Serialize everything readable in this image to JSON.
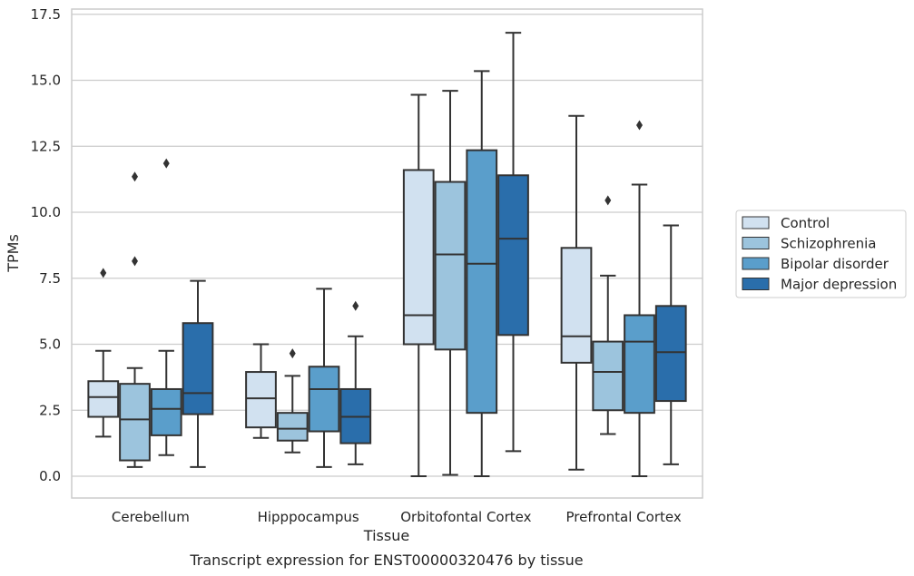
{
  "chart_data": {
    "type": "box",
    "title": "",
    "caption": "Transcript expression for ENST00000320476 by tissue",
    "xlabel": "Tissue",
    "ylabel": "TPMs",
    "ylim": [
      -0.8,
      17.6
    ],
    "yticks": [
      0.0,
      2.5,
      5.0,
      7.5,
      10.0,
      12.5,
      15.0,
      17.5
    ],
    "ytick_labels": [
      "0.0",
      "2.5",
      "5.0",
      "7.5",
      "10.0",
      "12.5",
      "15.0",
      "17.5"
    ],
    "grid": "horizontal",
    "legend_position": "right",
    "categories": [
      "Cerebellum",
      "Hipppocampus",
      "Orbitofontal Cortex",
      "Prefrontal Cortex"
    ],
    "series": [
      {
        "name": "Control",
        "color": "#d1e1f0",
        "boxes": [
          {
            "whislo": 1.5,
            "q1": 2.25,
            "med": 3.0,
            "q3": 3.6,
            "whishi": 4.75,
            "fliers": [
              7.7
            ]
          },
          {
            "whislo": 1.45,
            "q1": 1.85,
            "med": 2.95,
            "q3": 3.95,
            "whishi": 5.0,
            "fliers": []
          },
          {
            "whislo": 0.0,
            "q1": 5.0,
            "med": 6.1,
            "q3": 11.6,
            "whishi": 14.45,
            "fliers": []
          },
          {
            "whislo": 0.25,
            "q1": 4.3,
            "med": 5.3,
            "q3": 8.65,
            "whishi": 13.65,
            "fliers": []
          }
        ]
      },
      {
        "name": "Schizophrenia",
        "color": "#9cc4dd",
        "boxes": [
          {
            "whislo": 0.35,
            "q1": 0.6,
            "med": 2.15,
            "q3": 3.5,
            "whishi": 4.1,
            "fliers": [
              8.15,
              11.35
            ]
          },
          {
            "whislo": 0.9,
            "q1": 1.35,
            "med": 1.8,
            "q3": 2.4,
            "whishi": 3.8,
            "fliers": [
              4.65
            ]
          },
          {
            "whislo": 0.05,
            "q1": 4.8,
            "med": 8.4,
            "q3": 11.15,
            "whishi": 14.6,
            "fliers": []
          },
          {
            "whislo": 1.6,
            "q1": 2.5,
            "med": 3.95,
            "q3": 5.1,
            "whishi": 7.6,
            "fliers": [
              10.45
            ]
          }
        ]
      },
      {
        "name": "Bipolar disorder",
        "color": "#5a9ecb",
        "boxes": [
          {
            "whislo": 0.8,
            "q1": 1.55,
            "med": 2.55,
            "q3": 3.3,
            "whishi": 4.75,
            "fliers": [
              11.85
            ]
          },
          {
            "whislo": 0.35,
            "q1": 1.7,
            "med": 3.3,
            "q3": 4.15,
            "whishi": 7.1,
            "fliers": []
          },
          {
            "whislo": 0.0,
            "q1": 2.4,
            "med": 8.05,
            "q3": 12.35,
            "whishi": 15.35,
            "fliers": []
          },
          {
            "whislo": 0.0,
            "q1": 2.4,
            "med": 5.1,
            "q3": 6.1,
            "whishi": 11.05,
            "fliers": [
              13.3
            ]
          }
        ]
      },
      {
        "name": "Major depression",
        "color": "#2a6eab",
        "boxes": [
          {
            "whislo": 0.35,
            "q1": 2.35,
            "med": 3.15,
            "q3": 5.8,
            "whishi": 7.4,
            "fliers": []
          },
          {
            "whislo": 0.45,
            "q1": 1.25,
            "med": 2.25,
            "q3": 3.3,
            "whishi": 5.3,
            "fliers": [
              6.45
            ]
          },
          {
            "whislo": 0.95,
            "q1": 5.35,
            "med": 9.0,
            "q3": 11.4,
            "whishi": 16.8,
            "fliers": []
          },
          {
            "whislo": 0.45,
            "q1": 2.85,
            "med": 4.7,
            "q3": 6.45,
            "whishi": 9.5,
            "fliers": []
          }
        ]
      }
    ]
  }
}
